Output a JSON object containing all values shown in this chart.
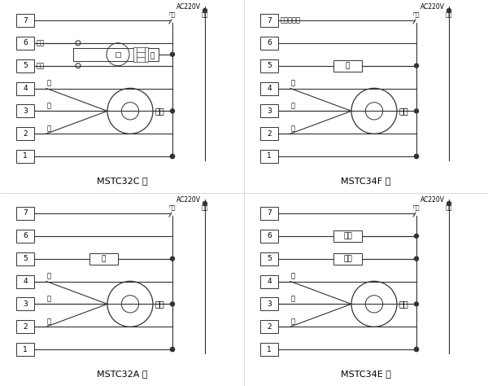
{
  "lc": "#333333",
  "lw": 0.8,
  "diagrams": [
    {
      "title": "MSTC32A 型",
      "qx": 0.0,
      "qy": 0.5,
      "valve_rows": [
        5
      ],
      "valve_labels": [
        "阀"
      ],
      "fan_rows": [
        4,
        3,
        2
      ],
      "fan_label_rows": {
        "4": "低",
        "3": "中",
        "2": "高"
      },
      "extra_labels": {},
      "motorized": false,
      "hot_cold": false,
      "aux_heat": false,
      "dot_rows": [
        5,
        3,
        1
      ],
      "notch_row": 7
    },
    {
      "title": "MSTC34E 型",
      "qx": 0.5,
      "qy": 0.5,
      "valve_rows": [
        6,
        5
      ],
      "valve_labels": [
        "热阀",
        "冷阀"
      ],
      "fan_rows": [
        4,
        3,
        2
      ],
      "fan_label_rows": {
        "4": "低",
        "3": "中",
        "2": "高"
      },
      "extra_labels": {},
      "motorized": false,
      "hot_cold": true,
      "aux_heat": false,
      "dot_rows": [
        6,
        5,
        3,
        1
      ],
      "notch_row": 7
    },
    {
      "title": "MSTC32C 型",
      "qx": 0.0,
      "qy": 0.0,
      "valve_rows": [],
      "valve_labels": [],
      "fan_rows": [
        4,
        3,
        2
      ],
      "fan_label_rows": {
        "4": "低",
        "3": "中",
        "2": "高"
      },
      "extra_labels": {
        "6": "阀关",
        "5": "阀开"
      },
      "motorized": true,
      "hot_cold": false,
      "aux_heat": false,
      "dot_rows": [
        3,
        1
      ],
      "notch_row": 7
    },
    {
      "title": "MSTC34F 型",
      "qx": 0.5,
      "qy": 0.0,
      "valve_rows": [
        5
      ],
      "valve_labels": [
        "阀"
      ],
      "fan_rows": [
        4,
        3,
        2
      ],
      "fan_label_rows": {
        "4": "低",
        "3": "中",
        "2": "高"
      },
      "extra_labels": {
        "7": "辅助电加热"
      },
      "motorized": false,
      "hot_cold": false,
      "aux_heat": true,
      "dot_rows": [
        5,
        3,
        1
      ],
      "notch_row": 7
    }
  ]
}
